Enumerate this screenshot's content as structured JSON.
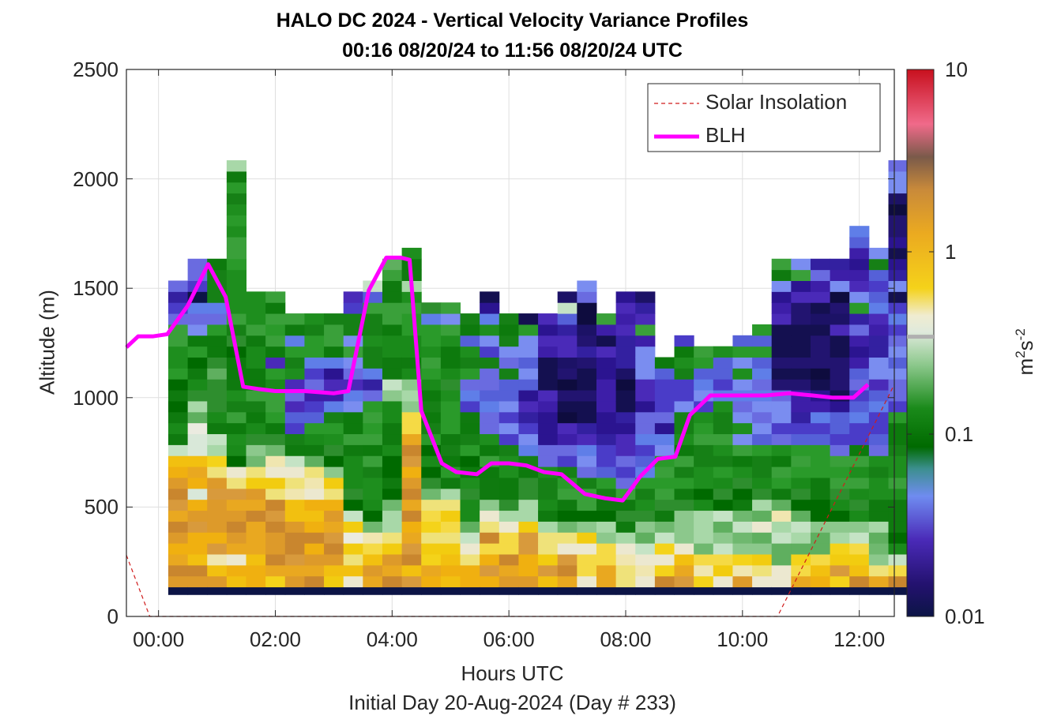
{
  "titles": {
    "line1": "HALO DC 2024 - Vertical Velocity Variance Profiles",
    "line2": "00:16 08/20/24 to 11:56 08/20/24  UTC"
  },
  "axes": {
    "xlabel": "Hours UTC",
    "subtitle": "Initial Day 20-Aug-2024 (Day # 233)",
    "ylabel": "Altitude (m)",
    "xticks": [
      "00:00",
      "02:00",
      "04:00",
      "06:00",
      "08:00",
      "10:00",
      "12:00"
    ],
    "yticks": [
      "0",
      "500",
      "1000",
      "1500",
      "2000",
      "2500"
    ],
    "colorbar_ticks": [
      "10",
      "1",
      "0.1",
      "0.01"
    ],
    "colorbar_label_base": "m",
    "colorbar_sup1": "2",
    "colorbar_mid": "s",
    "colorbar_sup2": "-2"
  },
  "legend": {
    "solar": "Solar Insolation",
    "blh": "BLH"
  },
  "chart_data": {
    "type": "heatmap",
    "x_unit": "hours UTC",
    "xlim": [
      -0.55,
      12.6
    ],
    "ylim": [
      0,
      2500
    ],
    "grid": true,
    "legend_position": "top-right",
    "colorbar": {
      "scale": "log",
      "range": [
        0.01,
        10
      ],
      "label": "m2 s-2"
    },
    "colors": {
      "blh": "#ff00ff",
      "solar": "#d01c1c",
      "grid": "#dfdfdf"
    },
    "heatmap_columns": {
      "x_start": 0.3333,
      "dx": 0.3333,
      "y_start": 100,
      "dy": 50,
      "note_codes": "variance class per cell from bottom (0=near-black surface row … see colormap in script)",
      "profiles": [
        [
          0,
          8,
          8,
          8,
          8,
          8,
          8,
          8,
          8,
          8,
          8,
          8,
          8,
          6,
          5,
          5,
          5,
          5,
          5,
          5,
          4,
          4,
          4,
          4,
          4,
          3,
          3,
          2,
          3
        ],
        [
          0,
          8,
          8,
          8,
          8,
          8,
          8,
          8,
          8,
          9,
          8,
          8,
          8,
          9,
          9,
          9,
          6,
          6,
          5,
          5,
          5,
          5,
          4,
          4,
          3,
          3,
          3,
          0,
          3,
          3,
          3
        ],
        [
          0,
          8,
          8,
          7,
          8,
          8,
          8,
          8,
          8,
          8,
          8,
          7,
          7,
          6,
          6,
          5,
          5,
          5,
          5,
          5,
          6,
          5,
          4,
          4,
          4,
          3,
          3,
          4,
          4,
          4,
          4
        ],
        [
          0,
          8,
          8,
          7,
          8,
          8,
          8,
          8,
          8,
          8,
          7,
          7,
          5,
          5,
          4,
          4,
          4,
          4,
          4,
          5,
          4,
          4,
          5,
          5,
          4,
          4,
          4,
          4,
          4,
          4,
          4,
          4,
          4,
          4,
          4,
          4,
          4,
          4,
          5,
          6
        ],
        [
          0,
          8,
          8,
          8,
          8,
          8,
          8,
          8,
          8,
          8,
          7,
          7,
          6,
          6,
          5,
          5,
          4,
          4,
          4,
          4,
          4,
          5,
          5,
          5,
          4,
          4,
          4,
          4
        ],
        [
          0,
          7,
          8,
          8,
          8,
          8,
          8,
          8,
          8,
          7,
          7,
          7,
          7,
          6,
          5,
          4,
          4,
          4,
          4,
          5,
          4,
          2,
          4,
          4,
          4,
          4,
          4,
          4
        ],
        [
          0,
          8,
          8,
          8,
          8,
          8,
          8,
          8,
          8,
          7,
          7,
          7,
          6,
          5,
          4,
          3,
          3,
          2,
          3,
          2,
          4,
          4,
          4,
          3,
          5,
          4
        ],
        [
          0,
          8,
          8,
          8,
          8,
          8,
          8,
          8,
          8,
          7,
          7,
          7,
          6,
          5,
          5,
          4,
          3,
          3,
          2,
          3,
          3,
          3,
          4,
          4,
          4,
          4
        ],
        [
          0,
          7,
          8,
          8,
          8,
          8,
          8,
          8,
          8,
          7,
          7,
          6,
          5,
          5,
          4,
          4,
          4,
          3,
          2,
          2,
          2,
          3,
          4,
          4,
          4,
          4
        ],
        [
          0,
          7,
          8,
          7,
          7,
          9,
          7,
          6,
          5,
          5,
          5,
          5,
          5,
          5,
          4,
          4,
          4,
          3,
          3,
          2,
          3,
          3,
          4,
          3,
          4,
          4,
          3,
          2
        ],
        [
          0,
          8,
          8,
          8,
          7,
          7,
          6,
          5,
          5,
          4,
          4,
          4,
          4,
          4,
          4,
          4,
          4,
          4,
          3,
          2,
          3,
          4,
          4,
          4,
          4,
          4,
          4,
          3,
          6
        ],
        [
          0,
          8,
          8,
          8,
          7,
          7,
          6,
          6,
          6,
          5,
          5,
          5,
          5,
          5,
          5,
          5,
          5,
          5,
          6,
          6,
          5,
          5,
          5,
          5,
          4,
          4,
          4,
          5,
          5,
          4,
          6
        ],
        [
          0,
          8,
          8,
          8,
          8,
          8,
          8,
          8,
          8,
          8,
          8,
          8,
          8,
          8,
          8,
          7,
          7,
          6,
          6,
          6,
          5,
          5,
          5,
          5,
          4,
          4,
          4,
          4,
          6,
          5,
          5,
          4
        ],
        [
          0,
          8,
          8,
          7,
          7,
          7,
          7,
          7,
          7,
          6,
          5,
          5,
          5,
          5,
          4,
          4,
          4,
          4,
          4,
          5,
          4,
          4,
          4,
          4,
          4,
          3,
          5
        ],
        [
          0,
          8,
          8,
          8,
          7,
          7,
          7,
          7,
          7,
          6,
          5,
          4,
          4,
          4,
          5,
          4,
          4,
          4,
          4,
          5,
          5,
          4,
          4,
          4,
          4,
          3,
          4
        ],
        [
          0,
          8,
          8,
          7,
          7,
          6,
          6,
          5,
          5,
          5,
          4,
          4,
          5,
          4,
          4,
          4,
          5,
          3,
          3,
          3,
          4,
          4,
          4,
          3,
          4,
          4
        ],
        [
          0,
          8,
          8,
          8,
          7,
          8,
          7,
          7,
          6,
          5,
          5,
          4,
          4,
          4,
          4,
          3,
          3,
          3,
          3,
          3,
          3,
          4,
          3,
          3,
          4,
          3,
          2,
          1
        ],
        [
          0,
          8,
          8,
          8,
          7,
          7,
          7,
          6,
          5,
          4,
          4,
          4,
          4,
          4,
          3,
          3,
          3,
          3,
          3,
          3,
          4,
          3,
          3,
          4,
          4,
          4
        ],
        [
          0,
          8,
          8,
          8,
          8,
          8,
          7,
          6,
          6,
          5,
          5,
          4,
          4,
          3,
          3,
          3,
          2,
          2,
          2,
          3,
          3,
          3,
          3,
          3,
          4,
          1
        ],
        [
          0,
          8,
          8,
          7,
          7,
          7,
          6,
          5,
          5,
          4,
          4,
          4,
          3,
          3,
          2,
          2,
          2,
          2,
          2,
          1,
          1,
          1,
          2,
          2,
          2,
          2
        ],
        [
          0,
          8,
          8,
          8,
          7,
          7,
          6,
          5,
          5,
          4,
          4,
          4,
          3,
          3,
          2,
          2,
          1,
          1,
          1,
          1,
          1,
          1,
          2,
          2,
          2,
          3,
          6,
          1
        ],
        [
          0,
          7,
          7,
          7,
          7,
          7,
          6,
          5,
          4,
          4,
          4,
          3,
          3,
          3,
          2,
          2,
          1,
          1,
          1,
          1,
          1,
          1,
          2,
          1,
          1,
          1,
          1,
          3,
          3
        ],
        [
          0,
          8,
          8,
          7,
          7,
          6,
          6,
          5,
          5,
          4,
          4,
          3,
          3,
          3,
          2,
          2,
          2,
          2,
          2,
          2,
          2,
          2,
          2,
          1,
          2,
          4
        ],
        [
          0,
          7,
          7,
          7,
          7,
          6,
          5,
          5,
          5,
          4,
          3,
          3,
          3,
          2,
          2,
          2,
          2,
          1,
          1,
          1,
          1,
          2,
          2,
          2,
          2,
          2,
          2,
          2
        ],
        [
          0,
          7,
          7,
          7,
          6,
          6,
          6,
          5,
          4,
          4,
          4,
          3,
          3,
          3,
          3,
          3,
          3,
          2,
          2,
          2,
          3,
          3,
          3,
          2,
          4,
          2,
          2,
          1
        ],
        [
          0,
          8,
          7,
          7,
          7,
          6,
          6,
          5,
          5,
          4,
          4,
          4,
          4,
          3,
          3,
          2,
          3,
          3,
          3,
          3,
          3,
          4
        ],
        [
          0,
          8,
          8,
          8,
          7,
          6,
          6,
          6,
          5,
          5,
          4,
          4,
          4,
          4,
          4,
          4,
          4,
          3,
          3,
          3,
          4,
          4,
          4,
          3
        ],
        [
          0,
          7,
          7,
          7,
          6,
          6,
          6,
          6,
          5,
          5,
          4,
          4,
          4,
          4,
          4,
          4,
          4,
          3,
          3,
          3,
          3,
          4,
          4
        ],
        [
          0,
          7,
          7,
          7,
          6,
          6,
          6,
          6,
          5,
          5,
          5,
          4,
          4,
          4,
          4,
          4,
          4,
          4,
          3,
          3,
          3,
          3,
          4
        ],
        [
          0,
          8,
          7,
          7,
          6,
          6,
          6,
          6,
          5,
          5,
          5,
          4,
          4,
          4,
          3,
          4,
          3,
          3,
          3,
          3,
          4,
          3,
          4,
          3
        ],
        [
          0,
          7,
          7,
          7,
          6,
          6,
          7,
          6,
          6,
          5,
          5,
          4,
          4,
          4,
          3,
          3,
          3,
          3,
          3,
          3,
          3,
          3,
          4,
          3,
          4
        ],
        [
          0,
          7,
          7,
          6,
          6,
          6,
          6,
          7,
          6,
          5,
          4,
          4,
          4,
          4,
          3,
          3,
          3,
          3,
          3,
          1,
          1,
          1,
          1,
          1,
          1,
          2,
          2,
          2,
          3,
          5,
          4
        ],
        [
          0,
          8,
          7,
          7,
          6,
          6,
          6,
          6,
          5,
          5,
          5,
          4,
          4,
          4,
          3,
          3,
          2,
          2,
          2,
          1,
          1,
          1,
          1,
          1,
          1,
          1,
          1,
          2,
          2,
          4,
          3
        ],
        [
          0,
          8,
          8,
          7,
          6,
          6,
          6,
          5,
          5,
          5,
          5,
          4,
          4,
          4,
          3,
          3,
          3,
          2,
          2,
          1,
          1,
          1,
          1,
          1,
          1,
          1,
          1,
          2,
          2,
          3,
          2
        ],
        [
          0,
          7,
          8,
          7,
          7,
          6,
          6,
          5,
          5,
          5,
          4,
          4,
          4,
          3,
          3,
          3,
          3,
          2,
          1,
          1,
          1,
          1,
          1,
          1,
          2,
          1,
          1,
          1,
          3,
          2,
          2
        ],
        [
          0,
          8,
          8,
          7,
          7,
          6,
          6,
          5,
          5,
          5,
          4,
          4,
          4,
          4,
          3,
          3,
          3,
          3,
          3,
          3,
          3,
          2,
          2,
          2,
          3,
          2,
          4,
          3,
          2,
          2,
          2,
          2,
          3,
          3
        ],
        [
          0,
          8,
          7,
          6,
          6,
          6,
          6,
          5,
          5,
          4,
          4,
          4,
          4,
          3,
          3,
          3,
          3,
          3,
          3,
          2,
          3,
          3,
          2,
          2,
          2,
          2,
          3,
          3,
          3,
          3,
          4,
          3
        ],
        [
          0,
          8,
          7,
          6,
          5,
          5,
          5,
          5,
          5,
          4,
          4,
          4,
          4,
          4,
          4,
          4,
          4,
          3,
          3,
          3,
          3,
          3,
          3,
          3,
          3,
          3,
          3,
          1,
          3,
          2,
          2,
          1,
          2,
          1,
          1,
          1,
          1,
          3,
          3,
          3
        ]
      ]
    },
    "series": [
      {
        "name": "BLH",
        "x": [
          -0.55,
          -0.35,
          -0.1,
          0.15,
          0.5,
          0.85,
          1.15,
          1.45,
          1.7,
          2.0,
          2.5,
          3.0,
          3.25,
          3.6,
          3.9,
          4.15,
          4.3,
          4.5,
          4.85,
          5.1,
          5.45,
          5.7,
          6.0,
          6.3,
          6.6,
          6.9,
          7.3,
          7.65,
          7.95,
          8.25,
          8.55,
          8.85,
          9.1,
          9.45,
          9.75,
          10.05,
          10.4,
          10.8,
          11.2,
          11.55,
          11.9,
          12.15
        ],
        "y": [
          1230,
          1280,
          1280,
          1290,
          1420,
          1610,
          1460,
          1050,
          1040,
          1030,
          1030,
          1020,
          1030,
          1490,
          1640,
          1640,
          1630,
          940,
          700,
          660,
          650,
          700,
          700,
          690,
          660,
          650,
          560,
          540,
          530,
          640,
          720,
          730,
          920,
          1010,
          1010,
          1010,
          1010,
          1020,
          1010,
          1000,
          1000,
          1060
        ]
      },
      {
        "name": "Solar Insolation",
        "x": [
          -0.55,
          -0.15,
          10.6,
          12.6
        ],
        "y": [
          280,
          0,
          0,
          1060
        ]
      }
    ]
  }
}
